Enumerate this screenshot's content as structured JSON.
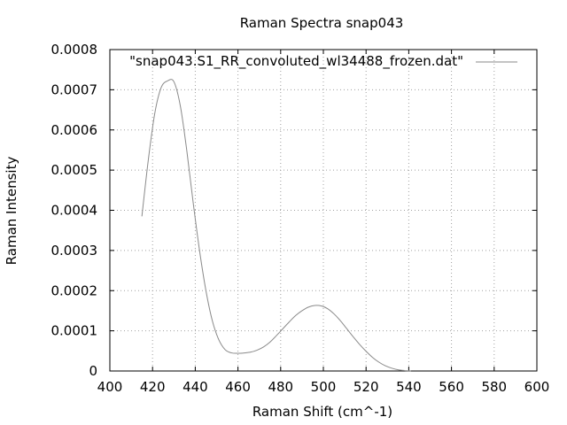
{
  "chart_data": {
    "type": "line",
    "title": "Raman Spectra snap043",
    "xlabel": "Raman Shift (cm^-1)",
    "ylabel": "Raman Intensity",
    "xlim": [
      400,
      600
    ],
    "ylim": [
      0,
      0.0008
    ],
    "x_ticks": [
      "400",
      "420",
      "440",
      "460",
      "480",
      "500",
      "520",
      "540",
      "560",
      "580",
      "600"
    ],
    "y_ticks": [
      "0",
      "0.0001",
      "0.0002",
      "0.0003",
      "0.0004",
      "0.0005",
      "0.0006",
      "0.0007",
      "0.0008"
    ],
    "grid": true,
    "legend_position": "top-right",
    "series": [
      {
        "name": "\"snap043.S1_RR_convoluted_wl34488_frozen.dat\"",
        "color": "#8a8a8a",
        "x": [
          415,
          418,
          421,
          424,
          427,
          430,
          433,
          436,
          439,
          442,
          445,
          448,
          451,
          454,
          457,
          460,
          463,
          466,
          469,
          472,
          475,
          478,
          481,
          484,
          487,
          490,
          493,
          496,
          499,
          502,
          505,
          508,
          511,
          514,
          517,
          520,
          523,
          526,
          529,
          532,
          535,
          538,
          541
        ],
        "y": [
          0.000385,
          0.000525,
          0.00064,
          0.000705,
          0.000722,
          0.00072,
          0.00066,
          0.00055,
          0.00042,
          0.0003,
          0.0002,
          0.000125,
          7.8e-05,
          5.3e-05,
          4.5e-05,
          4.4e-05,
          4.5e-05,
          4.7e-05,
          5.2e-05,
          6e-05,
          7.2e-05,
          8.8e-05,
          0.000105,
          0.000122,
          0.000138,
          0.00015,
          0.000159,
          0.000163,
          0.000162,
          0.000155,
          0.000142,
          0.000125,
          0.000105,
          8.5e-05,
          6.6e-05,
          4.9e-05,
          3.4e-05,
          2.2e-05,
          1.3e-05,
          7e-06,
          3e-06,
          1.2e-06,
          4e-07
        ]
      }
    ]
  }
}
